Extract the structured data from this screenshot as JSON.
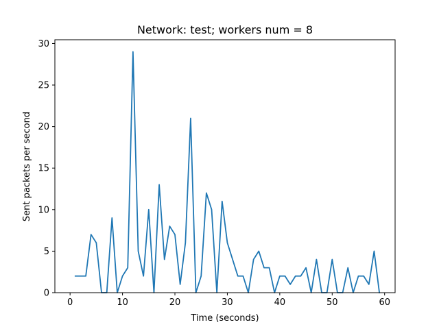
{
  "chart_data": {
    "type": "line",
    "title": "Network: test; workers num = 8",
    "xlabel": "Time (seconds)",
    "ylabel": "Sent packets per second",
    "xlim": [
      -2.9,
      62
    ],
    "ylim": [
      0,
      30.45
    ],
    "xticks": [
      0,
      10,
      20,
      30,
      40,
      50,
      60
    ],
    "yticks": [
      0,
      5,
      10,
      15,
      20,
      25,
      30
    ],
    "grid": false,
    "series": [
      {
        "color": "#1f77b4",
        "x": [
          1,
          2,
          3,
          4,
          5,
          6,
          7,
          8,
          9,
          10,
          11,
          12,
          13,
          14,
          15,
          16,
          17,
          18,
          19,
          20,
          21,
          22,
          23,
          24,
          25,
          26,
          27,
          28,
          29,
          30,
          31,
          32,
          33,
          34,
          35,
          36,
          37,
          38,
          39,
          40,
          41,
          42,
          43,
          44,
          45,
          46,
          47,
          48,
          49,
          50,
          51,
          52,
          53,
          54,
          55,
          56,
          57,
          58,
          59
        ],
        "values": [
          2,
          2,
          2,
          7,
          6,
          0,
          0,
          9,
          0,
          2,
          3,
          29,
          5,
          2,
          10,
          0,
          13,
          4,
          8,
          7,
          1,
          6,
          21,
          0,
          2,
          12,
          10,
          0,
          11,
          6,
          4,
          2,
          2,
          0,
          4,
          5,
          3,
          3,
          0,
          2,
          2,
          1,
          2,
          2,
          3,
          0,
          4,
          0,
          0,
          4,
          0,
          0,
          3,
          0,
          2,
          2,
          1,
          5,
          0
        ]
      }
    ]
  }
}
